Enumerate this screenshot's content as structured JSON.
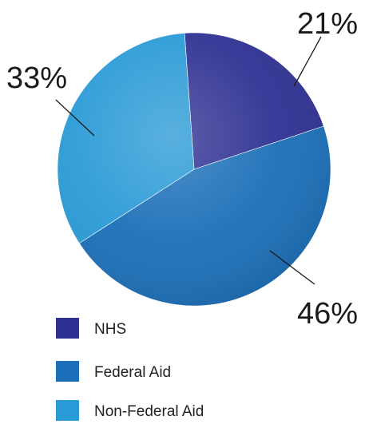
{
  "chart_data": {
    "type": "pie",
    "categories": [
      "NHS",
      "Federal Aid",
      "Non-Federal Aid"
    ],
    "values": [
      21,
      46,
      33
    ],
    "labels": [
      "21%",
      "46%",
      "33%"
    ],
    "colors": [
      "#2e3192",
      "#1b6fb8",
      "#2a9ad6"
    ],
    "title": "",
    "start_angle_deg": -4,
    "direction": "clockwise",
    "legend_placement": "bottom-left"
  },
  "legend": {
    "items": [
      {
        "label": "NHS",
        "color": "#2e3192"
      },
      {
        "label": "Federal Aid",
        "color": "#1b6fb8"
      },
      {
        "label": "Non-Federal Aid",
        "color": "#2a9ad6"
      }
    ]
  }
}
